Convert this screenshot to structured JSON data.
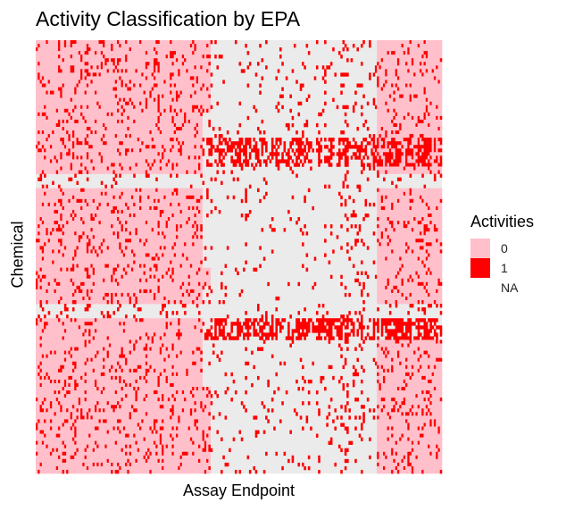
{
  "chart_data": {
    "type": "heatmap",
    "title": "Activity Classification by EPA",
    "xlabel": "Assay Endpoint",
    "ylabel": "Chemical",
    "legend": {
      "title": "Activities",
      "placement": "right",
      "entries": [
        {
          "label": "0",
          "color": "#ffc0cb"
        },
        {
          "label": "1",
          "color": "#ff0000"
        },
        {
          "label": "NA",
          "color": "#ffffff"
        }
      ]
    },
    "na_color": "#ebebeb",
    "n_rows": 120,
    "n_cols": 200,
    "blocks": [
      {
        "row_range": [
          0,
          120
        ],
        "col_range": [
          0,
          82
        ],
        "base": 0,
        "active_rate": 0.13
      },
      {
        "row_range": [
          0,
          120
        ],
        "col_range": [
          82,
          168
        ],
        "base": "NA",
        "active_rate": 0.05
      },
      {
        "row_range": [
          0,
          120
        ],
        "col_range": [
          168,
          200
        ],
        "base": 0,
        "active_rate": 0.12
      },
      {
        "row_range": [
          0,
          20
        ],
        "col_range": [
          82,
          86
        ],
        "base": 0,
        "active_rate": 0.08
      },
      {
        "row_range": [
          0,
          120
        ],
        "col_range": [
          150,
          165
        ],
        "base": "NA",
        "active_rate": 0.1
      },
      {
        "row_range": [
          27,
          35
        ],
        "col_range": [
          82,
          168
        ],
        "base": "NA",
        "active_rate": 0.45
      },
      {
        "row_range": [
          27,
          35
        ],
        "col_range": [
          165,
          200
        ],
        "base": 0,
        "active_rate": 0.45
      },
      {
        "row_range": [
          37,
          41
        ],
        "col_range": [
          0,
          200
        ],
        "base": "NA",
        "active_rate": 0
      },
      {
        "row_range": [
          73,
          77
        ],
        "col_range": [
          0,
          200
        ],
        "base": "NA",
        "active_rate": 0
      },
      {
        "row_range": [
          77,
          83
        ],
        "col_range": [
          82,
          200
        ],
        "base": "NA",
        "active_rate": 0.55
      },
      {
        "row_range": [
          63,
          68
        ],
        "col_range": [
          82,
          86
        ],
        "base": 0,
        "active_rate": 0.1
      },
      {
        "row_range": [
          96,
          120
        ],
        "col_range": [
          82,
          86
        ],
        "base": 0,
        "active_rate": 0.2
      }
    ],
    "seed": 42
  }
}
